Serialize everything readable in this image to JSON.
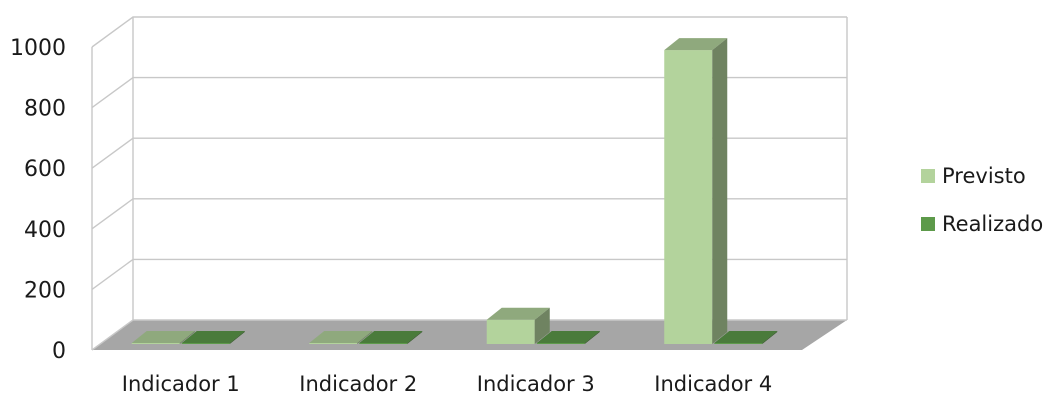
{
  "chart_data": {
    "type": "bar",
    "style": "3d-clustered-column",
    "title": "",
    "xlabel": "",
    "ylabel": "",
    "categories": [
      "Indicador 1",
      "Indicador 2",
      "Indicador 3",
      "Indicador 4"
    ],
    "series": [
      {
        "name": "Previsto",
        "values": [
          0,
          0,
          80,
          970
        ],
        "color": "#b3d39c"
      },
      {
        "name": "Realizado",
        "values": [
          0,
          0,
          0,
          0
        ],
        "color": "#5d9a4a"
      }
    ],
    "ylim": [
      0,
      1000
    ],
    "yticks": [
      0,
      200,
      400,
      600,
      800,
      1000
    ],
    "grid": true,
    "legend": "right",
    "colors": {
      "floor": "#a6a6a6",
      "grid": "#c8c8c8",
      "axis_text": "#1a1a1a"
    }
  }
}
